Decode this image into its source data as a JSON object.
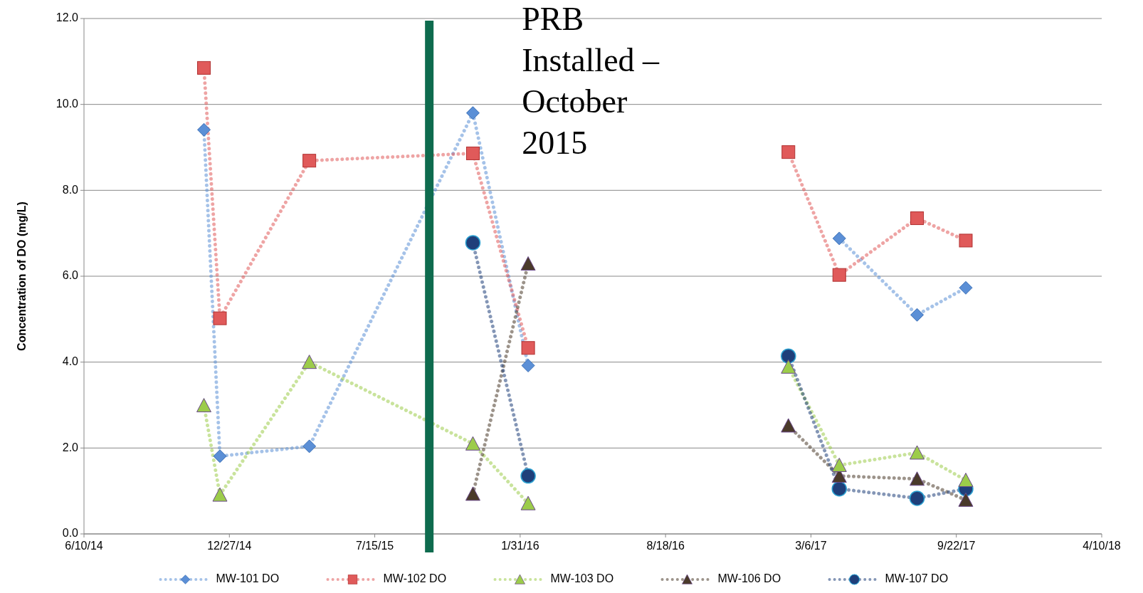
{
  "chart_data": {
    "type": "line",
    "xlabel": null,
    "ylabel": "Concentration of DO (mg/L)",
    "x": [
      "2014-11-22",
      "2014-12-14",
      "2015-04-16",
      "2015-11-27",
      "2016-02-11",
      "2016-08-01",
      "2017-02-03",
      "2017-04-14",
      "2017-07-30",
      "2017-10-05"
    ],
    "xlim": [
      "2014-06-10",
      "2018-04-10"
    ],
    "xticks": [
      {
        "value": "2014-06-10",
        "label": "6/10/14"
      },
      {
        "value": "2014-12-27",
        "label": "12/27/14"
      },
      {
        "value": "2015-07-15",
        "label": "7/15/15"
      },
      {
        "value": "2016-01-31",
        "label": "1/31/16"
      },
      {
        "value": "2016-08-18",
        "label": "8/18/16"
      },
      {
        "value": "2017-03-06",
        "label": "3/6/17"
      },
      {
        "value": "2017-09-22",
        "label": "9/22/17"
      },
      {
        "value": "2018-04-10",
        "label": "4/10/18"
      }
    ],
    "ylim": [
      0,
      12
    ],
    "yticks": [
      {
        "value": 0,
        "label": "0.0"
      },
      {
        "value": 2,
        "label": "2.0"
      },
      {
        "value": 4,
        "label": "4.0"
      },
      {
        "value": 6,
        "label": "6.0"
      },
      {
        "value": 8,
        "label": "8.0"
      },
      {
        "value": 10,
        "label": "10.0"
      },
      {
        "value": 12,
        "label": "12.0"
      }
    ],
    "grid": "y",
    "legend": "bottom",
    "line_style": "dotted",
    "series": [
      {
        "name": "MW-101 DO",
        "color": "#5b8fd6",
        "marker": "diamond",
        "values": [
          9.41,
          1.81,
          2.04,
          9.8,
          3.92,
          null,
          null,
          6.88,
          5.1,
          5.73
        ]
      },
      {
        "name": "MW-102 DO",
        "color": "#e05a5a",
        "marker": "square",
        "values": [
          10.85,
          5.02,
          8.69,
          8.86,
          4.33,
          null,
          8.89,
          6.03,
          7.35,
          6.83
        ]
      },
      {
        "name": "MW-103 DO",
        "color": "#9ccc4a",
        "marker": "triangle",
        "values": [
          2.99,
          0.91,
          4.0,
          2.1,
          0.71,
          null,
          3.89,
          1.6,
          1.89,
          1.25
        ]
      },
      {
        "name": "MW-106 DO",
        "color": "#4a3a2a",
        "marker": "triangle",
        "values": [
          null,
          null,
          null,
          0.93,
          6.29,
          null,
          2.52,
          1.35,
          1.28,
          0.79
        ]
      },
      {
        "name": "MW-107 DO",
        "color": "#1f3f7a",
        "marker": "circle",
        "values": [
          null,
          null,
          null,
          6.78,
          1.35,
          null,
          4.14,
          1.05,
          0.83,
          1.05
        ]
      }
    ],
    "ref_lines": [
      {
        "axis": "x",
        "value": "2015-09-28",
        "label": "PRB Installed – October 2015",
        "color": "#0e6b4e"
      }
    ]
  }
}
